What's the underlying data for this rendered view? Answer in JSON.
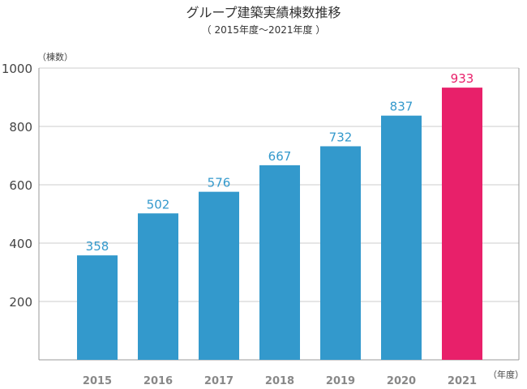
{
  "chart_data": {
    "type": "bar",
    "title": "グループ建築実績棟数推移",
    "subtitle": "（ 2015年度～2021年度 ）",
    "ylabel": "（棟数）",
    "xlabel": "（年度）",
    "ylim": [
      0,
      1000
    ],
    "yticks": [
      200,
      400,
      600,
      800,
      1000
    ],
    "grid": true,
    "categories": [
      "2015",
      "2016",
      "2017",
      "2018",
      "2019",
      "2020",
      "2021"
    ],
    "values": [
      358,
      502,
      576,
      667,
      732,
      837,
      933
    ],
    "bar_colors": [
      "#3399cc",
      "#3399cc",
      "#3399cc",
      "#3399cc",
      "#3399cc",
      "#3399cc",
      "#e8206a"
    ],
    "label_colors": [
      "#3399cc",
      "#3399cc",
      "#3399cc",
      "#3399cc",
      "#3399cc",
      "#3399cc",
      "#e8206a"
    ]
  }
}
